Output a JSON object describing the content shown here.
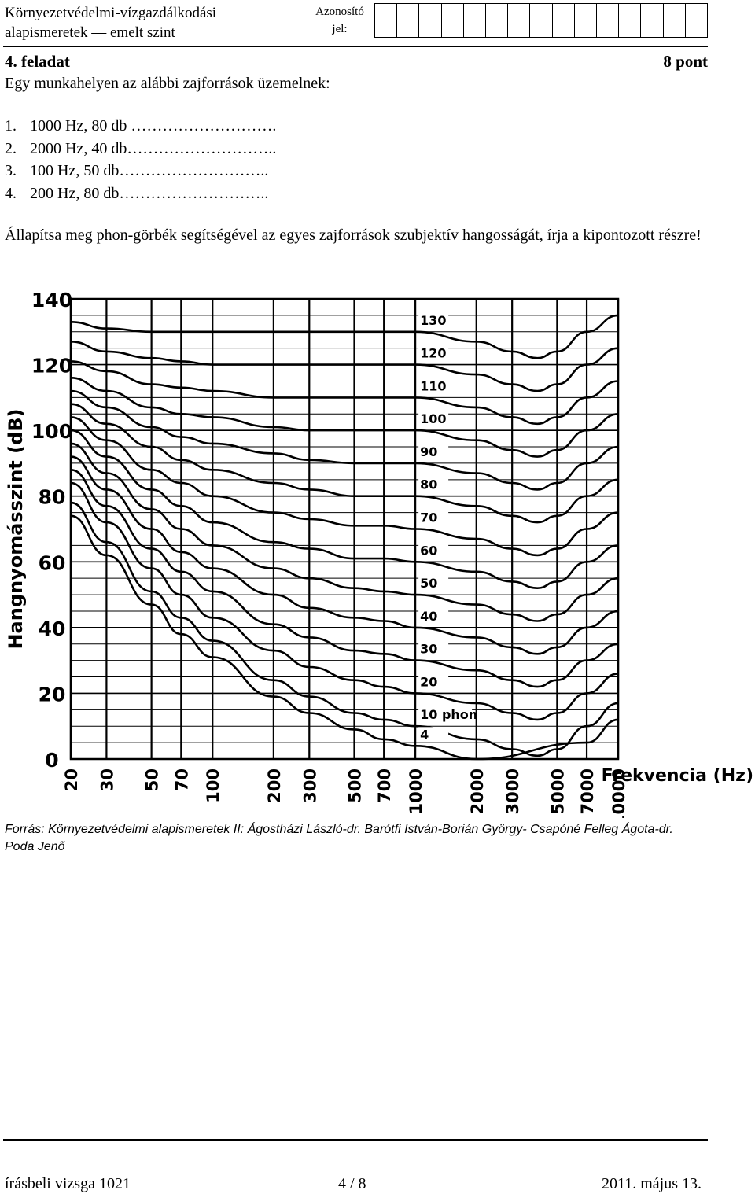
{
  "header": {
    "title_line1": "Környezetvédelmi-vízgazdálkodási",
    "title_line2": "alapismeretek — emelt szint",
    "id_label_line1": "Azonosító",
    "id_label_line2": "jel:"
  },
  "task": {
    "title": "4. feladat",
    "points": "8 pont",
    "intro": "Egy munkahelyen az alábbi zajforrások üzemelnek:",
    "items": [
      {
        "num": "1.",
        "text": "1000 Hz, 80 db",
        "dots": " ………………………."
      },
      {
        "num": "2.",
        "text": "2000 Hz, 40 db",
        "dots": "……………………….."
      },
      {
        "num": "3.",
        "text": "100 Hz, 50 db",
        "dots": "……………………….."
      },
      {
        "num": "4.",
        "text": "200 Hz, 80 db",
        "dots": "……………………….."
      }
    ],
    "instruction": "Állapítsa meg phon-görbék segítségével az egyes zajforrások szubjektív hangosságát, írja a kipontozott részre!"
  },
  "chart_data": {
    "type": "line",
    "ylabel": "Hangnyomásszint (dB)",
    "xlabel": "Frekvencia (Hz)",
    "x_scale": "log",
    "xlim": [
      20,
      10000
    ],
    "ylim": [
      0,
      140
    ],
    "x_ticks": [
      "20",
      "30",
      "50",
      "70",
      "100",
      "200",
      "300",
      "500",
      "700",
      "1000",
      "2000",
      "3000",
      "5000",
      "7000",
      "10000"
    ],
    "y_ticks": [
      "0",
      "20",
      "40",
      "60",
      "80",
      "100",
      "120",
      "140"
    ],
    "series_labels": [
      "130",
      "120",
      "110",
      "100",
      "90",
      "80",
      "70",
      "60",
      "50",
      "40",
      "30",
      "20",
      "10 phon",
      "4"
    ],
    "x": [
      20,
      30,
      50,
      70,
      100,
      200,
      300,
      500,
      700,
      1000,
      2000,
      3000,
      4000,
      5000,
      7000,
      10000
    ],
    "series": [
      {
        "phon": 4,
        "values": [
          74,
          62,
          47,
          38,
          31,
          19,
          14,
          9,
          6,
          4,
          0,
          -3,
          -5,
          -2,
          5,
          12
        ]
      },
      {
        "phon": 10,
        "values": [
          78,
          66,
          51,
          43,
          36,
          24,
          19,
          14,
          12,
          10,
          6,
          3,
          1,
          3,
          10,
          17
        ]
      },
      {
        "phon": 20,
        "values": [
          84,
          72,
          58,
          50,
          43,
          33,
          28,
          24,
          22,
          20,
          17,
          14,
          12,
          14,
          20,
          26
        ]
      },
      {
        "phon": 30,
        "values": [
          88,
          77,
          64,
          57,
          51,
          41,
          37,
          33,
          32,
          30,
          27,
          24,
          22,
          24,
          30,
          35
        ]
      },
      {
        "phon": 40,
        "values": [
          92,
          82,
          70,
          63,
          58,
          50,
          46,
          43,
          42,
          40,
          37,
          34,
          32,
          34,
          40,
          45
        ]
      },
      {
        "phon": 50,
        "values": [
          96,
          87,
          76,
          70,
          65,
          58,
          55,
          52,
          51,
          50,
          47,
          44,
          42,
          44,
          50,
          55
        ]
      },
      {
        "phon": 60,
        "values": [
          100,
          92,
          82,
          77,
          72,
          66,
          64,
          61,
          61,
          60,
          57,
          54,
          52,
          54,
          60,
          65
        ]
      },
      {
        "phon": 70,
        "values": [
          104,
          97,
          88,
          84,
          80,
          75,
          73,
          71,
          71,
          70,
          67,
          64,
          62,
          64,
          70,
          75
        ]
      },
      {
        "phon": 80,
        "values": [
          108,
          102,
          95,
          91,
          88,
          84,
          82,
          80,
          80,
          80,
          77,
          74,
          72,
          74,
          80,
          85
        ]
      },
      {
        "phon": 90,
        "values": [
          112,
          107,
          101,
          98,
          96,
          93,
          91,
          90,
          90,
          90,
          87,
          84,
          82,
          84,
          90,
          95
        ]
      },
      {
        "phon": 100,
        "values": [
          116,
          112,
          107,
          105,
          104,
          101,
          100,
          100,
          100,
          100,
          97,
          94,
          92,
          94,
          100,
          105
        ]
      },
      {
        "phon": 110,
        "values": [
          121,
          118,
          114,
          113,
          112,
          110,
          110,
          110,
          110,
          110,
          107,
          104,
          102,
          104,
          110,
          115
        ]
      },
      {
        "phon": 120,
        "values": [
          127,
          124,
          122,
          121,
          120,
          120,
          120,
          120,
          120,
          120,
          117,
          114,
          112,
          114,
          120,
          125
        ]
      },
      {
        "phon": 130,
        "values": [
          133,
          131,
          130,
          130,
          130,
          130,
          130,
          130,
          130,
          130,
          127,
          124,
          122,
          124,
          130,
          135
        ]
      }
    ],
    "grid": true
  },
  "source": "Forrás: Környezetvédelmi alapismeretek II: Ágostházi László-dr. Barótfi István-Borián György- Csapóné Felleg Ágota-dr. Poda Jenő",
  "footer": {
    "left": "írásbeli vizsga 1021",
    "page": "4 / 8",
    "date": "2011. május 13."
  }
}
